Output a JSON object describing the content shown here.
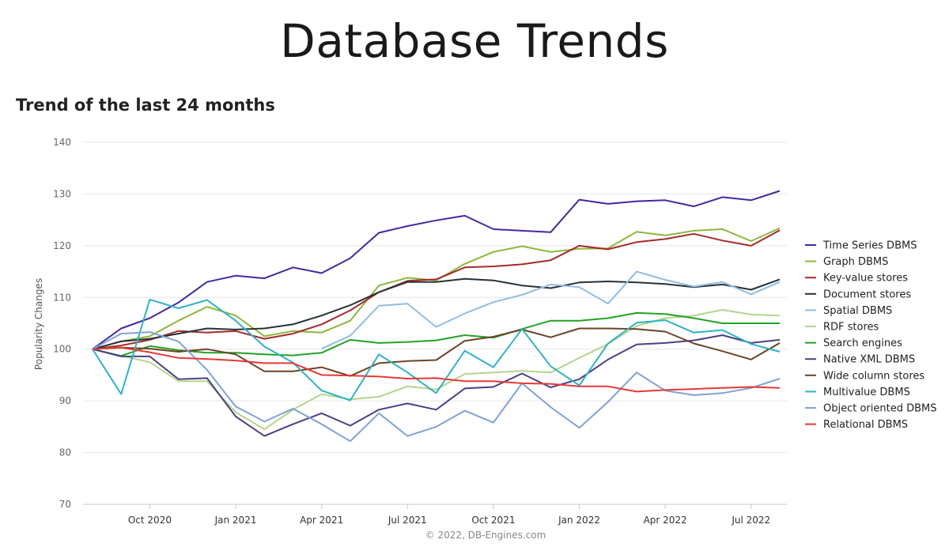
{
  "slide": {
    "title": "Database Trends"
  },
  "chart_data": {
    "type": "line",
    "title": "Trend of the last 24 months",
    "ylabel": "Popularity Changes",
    "credit": "© 2022, DB-Engines.com",
    "ylim": [
      70,
      140
    ],
    "yticks": [
      70,
      80,
      90,
      100,
      110,
      120,
      130,
      140
    ],
    "x_tick_labels": [
      "Oct 2020",
      "Jan 2021",
      "Apr 2021",
      "Jul 2021",
      "Oct 2021",
      "Jan 2022",
      "Apr 2022",
      "Jul 2022"
    ],
    "x_tick_indices": [
      2,
      5,
      8,
      11,
      14,
      17,
      20,
      23
    ],
    "n_points": 25,
    "grid": true,
    "legend_position": "right",
    "series": [
      {
        "name": "Time Series DBMS",
        "color": "#4527a0",
        "values": [
          100,
          104,
          106,
          109,
          113,
          114.2,
          113.7,
          115.8,
          114.7,
          117.6,
          122.5,
          123.8,
          124.9,
          125.8,
          123.2,
          122.9,
          122.6,
          128.9,
          128.1,
          128.6,
          128.8,
          127.6,
          129.4,
          128.8,
          130.6
        ]
      },
      {
        "name": "Graph DBMS",
        "color": "#8bb83a",
        "values": [
          100,
          101.5,
          102.5,
          105.5,
          108.2,
          106.5,
          102.5,
          103.5,
          103.2,
          105.5,
          112.3,
          113.8,
          113.3,
          116.5,
          118.8,
          119.9,
          118.8,
          119.4,
          119.5,
          122.7,
          122,
          122.9,
          123.2,
          120.9,
          123.4
        ]
      },
      {
        "name": "Key-value stores",
        "color": "#a52a2a",
        "values": [
          100,
          100.7,
          101.8,
          103.5,
          103.2,
          103.5,
          102,
          103,
          104.8,
          107.5,
          111,
          113.2,
          113.5,
          115.8,
          116,
          116.4,
          117.2,
          120,
          119.3,
          120.7,
          121.3,
          122.3,
          121,
          120,
          123
        ]
      },
      {
        "name": "Document stores",
        "color": "#263238",
        "values": [
          100,
          101.5,
          102,
          103,
          104,
          103.8,
          104,
          104.8,
          106.5,
          108.5,
          111,
          113,
          113,
          113.6,
          113.3,
          112.3,
          111.8,
          112.9,
          113.1,
          112.9,
          112.6,
          112,
          112.5,
          111.5,
          113.5
        ]
      },
      {
        "name": "Spatial DBMS",
        "color": "#90bde4",
        "values": [
          null,
          null,
          null,
          null,
          null,
          null,
          null,
          null,
          100.1,
          102.6,
          108.4,
          108.8,
          104.3,
          106.9,
          109.1,
          110.5,
          112.5,
          112,
          108.8,
          115,
          113.4,
          112.1,
          113,
          110.6,
          113
        ]
      },
      {
        "name": "RDF stores",
        "color": "#b5d58a",
        "values": [
          100,
          98.7,
          97.5,
          93.8,
          93.8,
          87.8,
          84.5,
          88.3,
          91.3,
          90.3,
          90.8,
          92.8,
          92.2,
          95.2,
          95.5,
          95.8,
          95.5,
          98.3,
          101,
          104.5,
          106,
          106.5,
          107.6,
          106.7,
          106.5
        ]
      },
      {
        "name": "Search engines",
        "color": "#22a322",
        "values": [
          100,
          98.7,
          100.6,
          99.8,
          99.3,
          99.3,
          99,
          98.8,
          99.3,
          101.8,
          101.2,
          101.4,
          101.7,
          102.7,
          102.2,
          103.9,
          105.5,
          105.5,
          106,
          107,
          106.8,
          106,
          105,
          105,
          105
        ]
      },
      {
        "name": "Native XML DBMS",
        "color": "#4a3f87",
        "values": [
          100,
          98.6,
          98.6,
          94.2,
          94.4,
          87,
          83.2,
          85.5,
          87.6,
          85.2,
          88.3,
          89.5,
          88.3,
          92.4,
          92.7,
          95.3,
          92.6,
          94.2,
          98,
          100.9,
          101.2,
          101.7,
          102.7,
          101.2,
          101.8
        ]
      },
      {
        "name": "Wide column stores",
        "color": "#6b4423",
        "values": [
          100,
          100.3,
          100.1,
          99.5,
          100,
          99,
          95.7,
          95.7,
          96.5,
          94.8,
          97.3,
          97.7,
          97.9,
          101.6,
          102.4,
          103.8,
          102.3,
          104,
          104,
          103.9,
          103.4,
          101.1,
          99.6,
          98,
          101.2
        ]
      },
      {
        "name": "Multivalue DBMS",
        "color": "#2eb3c8",
        "values": [
          100,
          91.3,
          109.6,
          107.9,
          109.5,
          105.5,
          100.5,
          97.4,
          92,
          90.1,
          99,
          95.5,
          91.5,
          99.7,
          96.5,
          103.9,
          96.7,
          93,
          101.1,
          105.1,
          105.6,
          103.2,
          103.7,
          101,
          99.5
        ]
      },
      {
        "name": "Object oriented DBMS",
        "color": "#7fa2d6",
        "values": [
          100,
          103,
          103.3,
          101.5,
          96,
          88.9,
          86,
          88.5,
          85.5,
          82.2,
          87.6,
          83.2,
          85,
          88.1,
          85.8,
          93.4,
          88.8,
          84.8,
          89.8,
          95.5,
          92,
          91.1,
          91.5,
          92.5,
          94.3
        ]
      },
      {
        "name": "Relational DBMS",
        "color": "#e53935",
        "values": [
          100,
          100.3,
          99.4,
          98.3,
          98.1,
          97.8,
          97.3,
          97.3,
          95,
          94.9,
          94.7,
          94.3,
          94.4,
          93.8,
          93.8,
          93.4,
          93.3,
          92.8,
          92.8,
          91.8,
          92.1,
          92.3,
          92.5,
          92.7,
          92.5
        ]
      }
    ]
  }
}
